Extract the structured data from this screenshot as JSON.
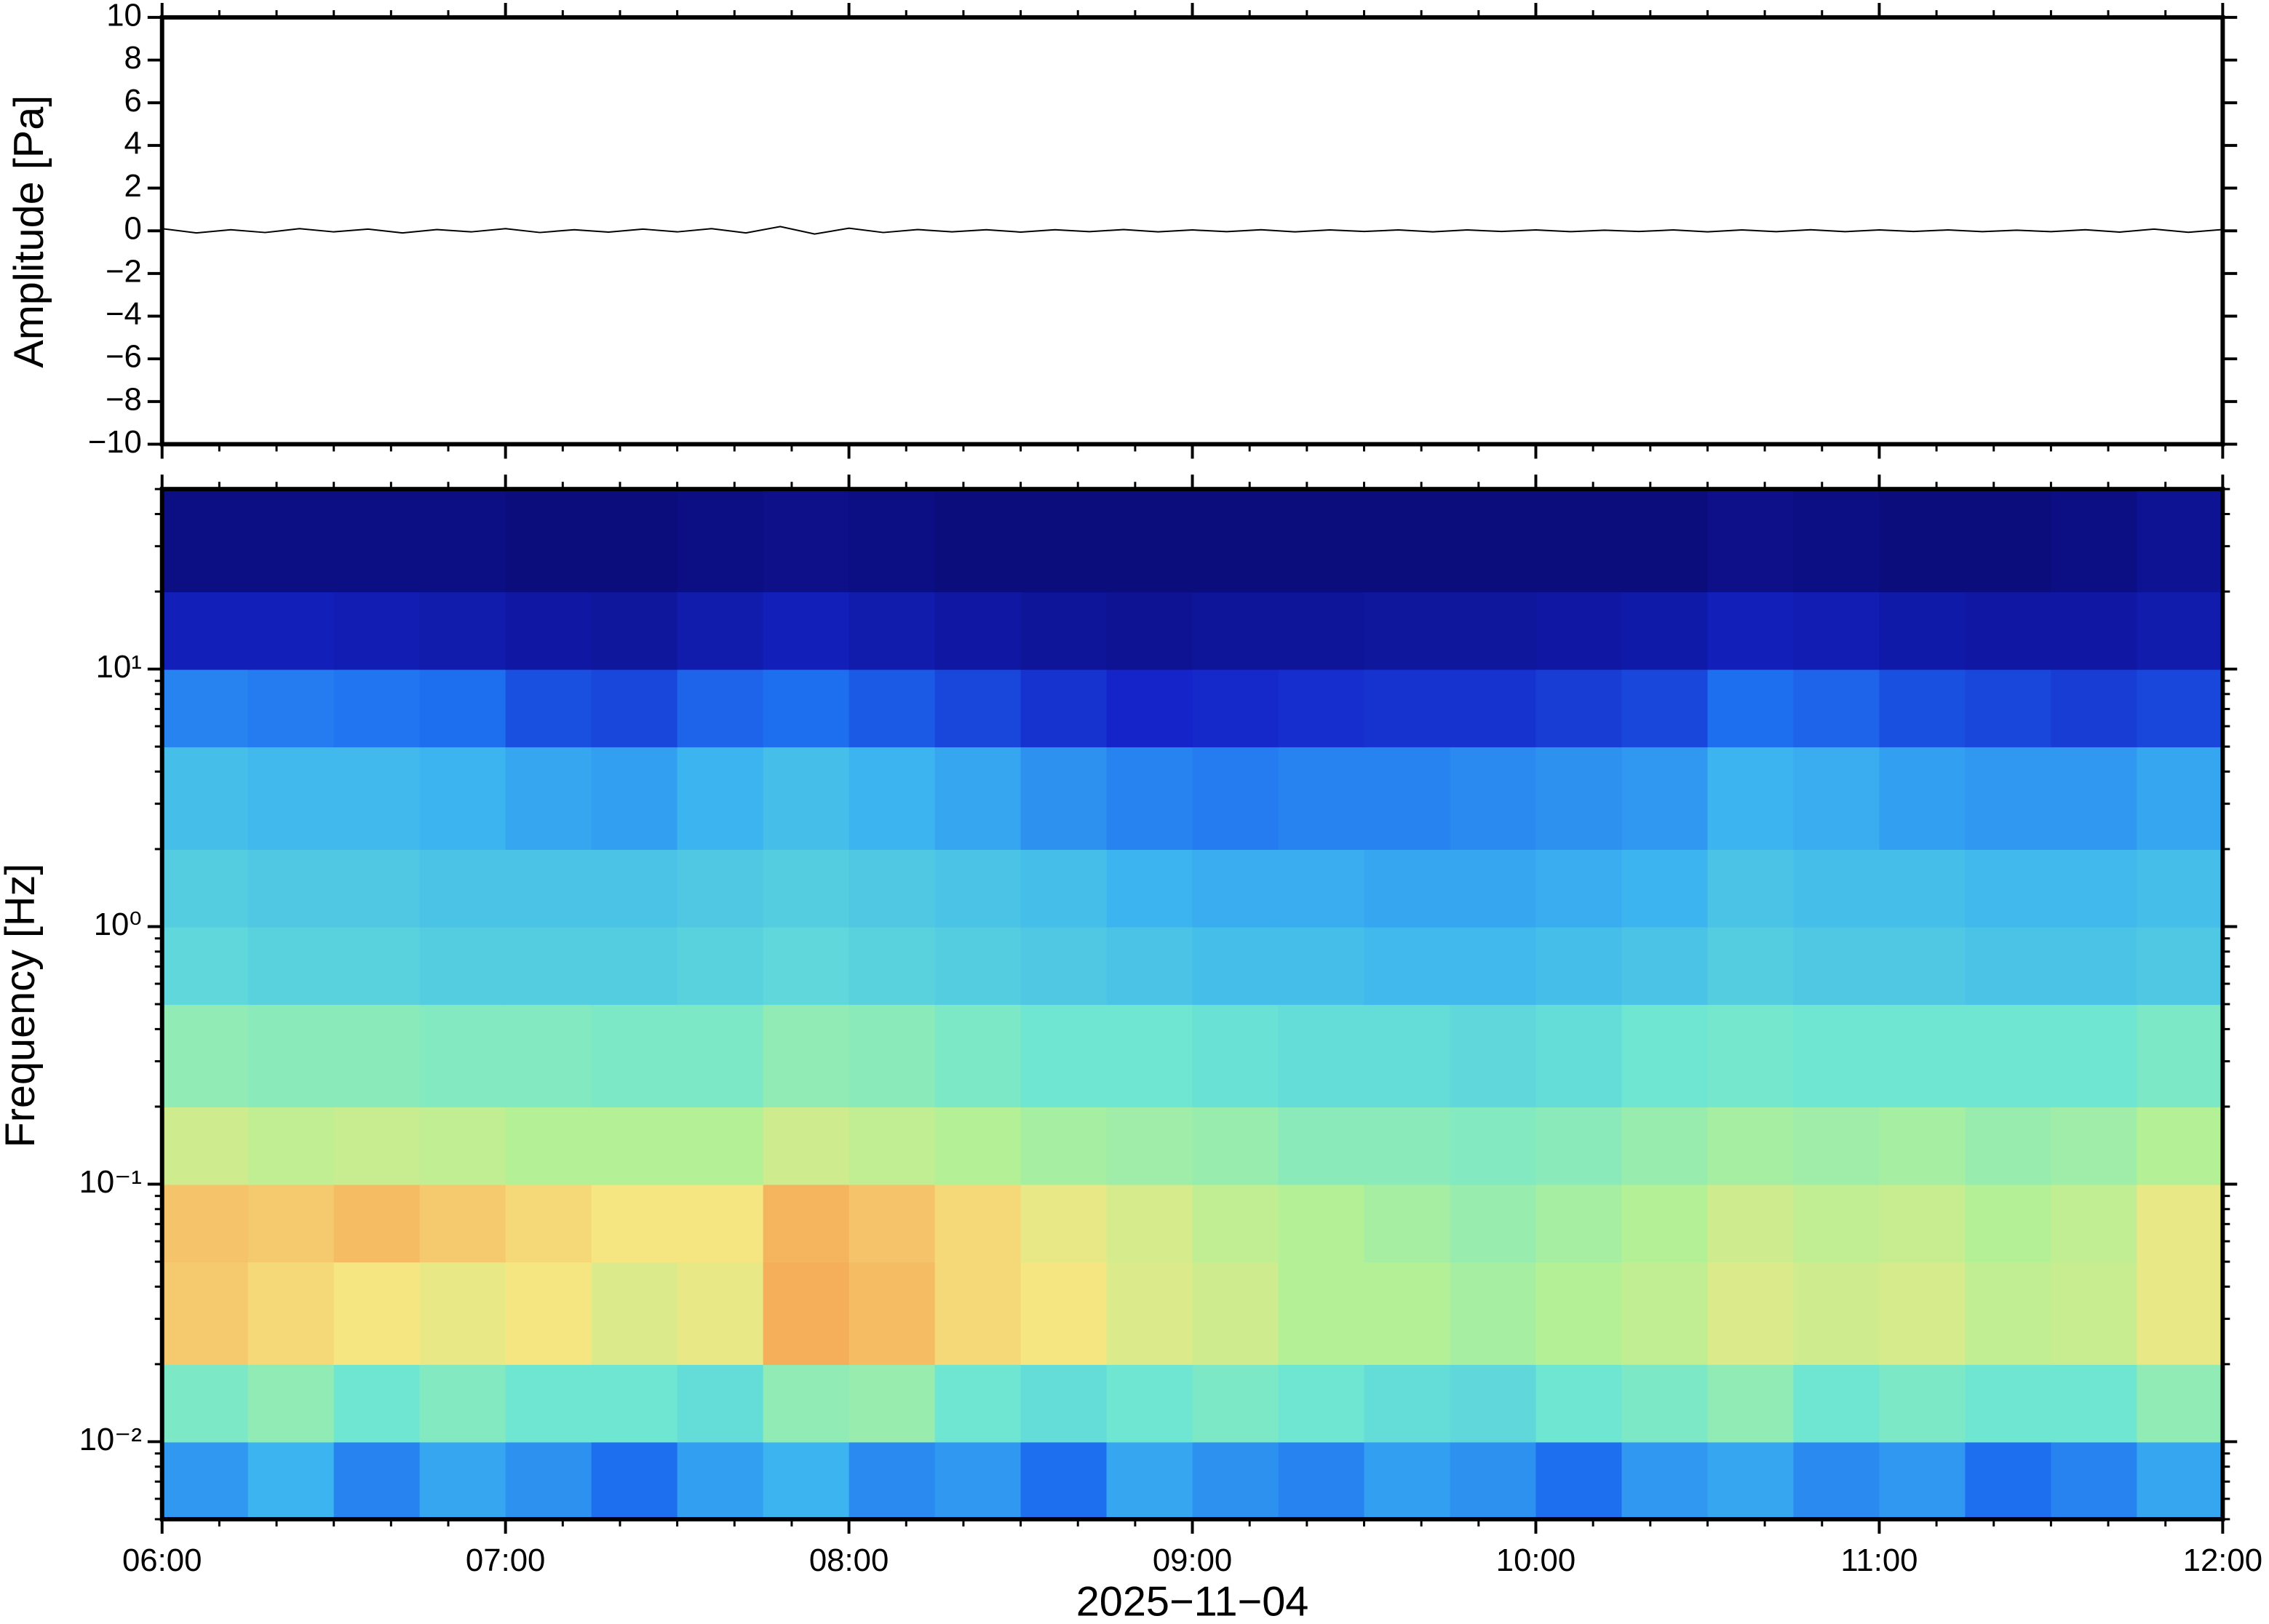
{
  "chart_data": [
    {
      "type": "line",
      "ylabel": "Amplitude [Pa]",
      "color": "#000000",
      "xlim": [
        6,
        12
      ],
      "ylim": [
        -10,
        10
      ],
      "yticks": [
        {
          "value": -10,
          "label": "−10"
        },
        {
          "value": -8,
          "label": "−8"
        },
        {
          "value": -6,
          "label": "−6"
        },
        {
          "value": -4,
          "label": "−4"
        },
        {
          "value": -2,
          "label": "−2"
        },
        0,
        2,
        4,
        6,
        8,
        10
      ],
      "x": [
        6.0,
        6.1,
        6.2,
        6.3,
        6.4,
        6.5,
        6.6,
        6.7,
        6.8,
        6.9,
        7.0,
        7.1,
        7.2,
        7.3,
        7.4,
        7.5,
        7.6,
        7.7,
        7.8,
        7.9,
        8.0,
        8.1,
        8.2,
        8.3,
        8.4,
        8.5,
        8.6,
        8.7,
        8.8,
        8.9,
        9.0,
        9.1,
        9.2,
        9.3,
        9.4,
        9.5,
        9.6,
        9.7,
        9.8,
        9.9,
        10.0,
        10.1,
        10.2,
        10.3,
        10.4,
        10.5,
        10.6,
        10.7,
        10.8,
        10.9,
        11.0,
        11.1,
        11.2,
        11.3,
        11.4,
        11.5,
        11.6,
        11.7,
        11.8,
        11.9,
        12.0
      ],
      "values": [
        0.1,
        -0.1,
        0.05,
        -0.08,
        0.1,
        -0.05,
        0.08,
        -0.1,
        0.06,
        -0.05,
        0.1,
        -0.08,
        0.05,
        -0.06,
        0.08,
        -0.05,
        0.1,
        -0.1,
        0.2,
        -0.15,
        0.12,
        -0.08,
        0.06,
        -0.05,
        0.05,
        -0.06,
        0.05,
        -0.04,
        0.06,
        -0.05,
        0.04,
        -0.04,
        0.05,
        -0.05,
        0.04,
        -0.03,
        0.04,
        -0.05,
        0.04,
        -0.03,
        0.04,
        -0.04,
        0.03,
        -0.03,
        0.04,
        -0.05,
        0.04,
        -0.04,
        0.05,
        -0.04,
        0.04,
        -0.03,
        0.04,
        -0.04,
        0.03,
        -0.04,
        0.05,
        -0.06,
        0.08,
        -0.07,
        0.06
      ]
    },
    {
      "type": "heatmap",
      "ylabel": "Frequency [Hz]",
      "xlabel": "2025−11−04",
      "ylog": true,
      "xlim": [
        6,
        12
      ],
      "ylim": [
        0.005,
        50
      ],
      "xticks": [
        {
          "value": 6,
          "label": "06:00"
        },
        {
          "value": 7,
          "label": "07:00"
        },
        {
          "value": 8,
          "label": "08:00"
        },
        {
          "value": 9,
          "label": "09:00"
        },
        {
          "value": 10,
          "label": "10:00"
        },
        {
          "value": 11,
          "label": "11:00"
        },
        {
          "value": 12,
          "label": "12:00"
        }
      ],
      "yticks": [
        {
          "value": 0.01,
          "label": "10⁻²"
        },
        {
          "value": 0.1,
          "label": "10⁻¹"
        },
        {
          "value": 1,
          "label": "10⁰"
        },
        {
          "value": 10,
          "label": "10¹"
        }
      ],
      "colormap": {
        "stops": [
          0,
          0.15,
          0.3,
          0.4,
          0.5,
          0.6,
          0.7,
          0.8,
          1
        ],
        "colors": [
          "#0b0b78",
          "#1424c8",
          "#1e6ef0",
          "#3cb4f0",
          "#6ee6d2",
          "#b4f096",
          "#f5e682",
          "#f5a050",
          "#e03020"
        ]
      },
      "x_edges": [
        6,
        6.25,
        6.5,
        6.75,
        7,
        7.25,
        7.5,
        7.75,
        8,
        8.25,
        8.5,
        8.75,
        9,
        9.25,
        9.5,
        9.75,
        10,
        10.25,
        10.5,
        10.75,
        11,
        11.25,
        11.5,
        11.75,
        12
      ],
      "y_edges": [
        0.005,
        0.01,
        0.02,
        0.05,
        0.1,
        0.2,
        0.5,
        1,
        2,
        5,
        10,
        20,
        50
      ],
      "values": [
        [
          0.36,
          0.4,
          0.33,
          0.38,
          0.35,
          0.3,
          0.37,
          0.4,
          0.34,
          0.36,
          0.3,
          0.38,
          0.35,
          0.33,
          0.37,
          0.35,
          0.3,
          0.36,
          0.38,
          0.34,
          0.36,
          0.3,
          0.33,
          0.38
        ],
        [
          0.52,
          0.55,
          0.5,
          0.53,
          0.5,
          0.5,
          0.48,
          0.55,
          0.56,
          0.5,
          0.48,
          0.5,
          0.52,
          0.5,
          0.48,
          0.47,
          0.5,
          0.52,
          0.55,
          0.5,
          0.52,
          0.5,
          0.5,
          0.55
        ],
        [
          0.74,
          0.72,
          0.7,
          0.68,
          0.7,
          0.66,
          0.68,
          0.78,
          0.76,
          0.72,
          0.7,
          0.66,
          0.64,
          0.6,
          0.6,
          0.58,
          0.6,
          0.62,
          0.66,
          0.64,
          0.65,
          0.62,
          0.63,
          0.68
        ],
        [
          0.75,
          0.74,
          0.76,
          0.74,
          0.72,
          0.7,
          0.7,
          0.77,
          0.75,
          0.72,
          0.68,
          0.65,
          0.62,
          0.6,
          0.58,
          0.56,
          0.58,
          0.6,
          0.64,
          0.62,
          0.63,
          0.6,
          0.62,
          0.68
        ],
        [
          0.64,
          0.62,
          0.63,
          0.62,
          0.6,
          0.6,
          0.6,
          0.64,
          0.62,
          0.6,
          0.58,
          0.57,
          0.56,
          0.54,
          0.54,
          0.53,
          0.54,
          0.56,
          0.58,
          0.57,
          0.58,
          0.56,
          0.57,
          0.6
        ],
        [
          0.55,
          0.54,
          0.54,
          0.53,
          0.53,
          0.52,
          0.52,
          0.55,
          0.54,
          0.52,
          0.5,
          0.5,
          0.49,
          0.48,
          0.48,
          0.47,
          0.48,
          0.5,
          0.51,
          0.5,
          0.5,
          0.5,
          0.5,
          0.52
        ],
        [
          0.47,
          0.46,
          0.46,
          0.45,
          0.45,
          0.45,
          0.46,
          0.47,
          0.46,
          0.45,
          0.44,
          0.43,
          0.42,
          0.42,
          0.41,
          0.41,
          0.42,
          0.43,
          0.45,
          0.44,
          0.44,
          0.43,
          0.43,
          0.44
        ],
        [
          0.45,
          0.44,
          0.44,
          0.43,
          0.43,
          0.43,
          0.44,
          0.45,
          0.44,
          0.43,
          0.42,
          0.4,
          0.39,
          0.39,
          0.38,
          0.38,
          0.39,
          0.4,
          0.43,
          0.42,
          0.42,
          0.41,
          0.41,
          0.42
        ],
        [
          0.42,
          0.41,
          0.41,
          0.4,
          0.38,
          0.37,
          0.4,
          0.42,
          0.4,
          0.38,
          0.35,
          0.33,
          0.32,
          0.33,
          0.33,
          0.34,
          0.35,
          0.36,
          0.4,
          0.39,
          0.37,
          0.36,
          0.36,
          0.38
        ],
        [
          0.33,
          0.32,
          0.31,
          0.3,
          0.24,
          0.22,
          0.28,
          0.3,
          0.26,
          0.22,
          0.18,
          0.15,
          0.16,
          0.17,
          0.18,
          0.18,
          0.2,
          0.22,
          0.3,
          0.28,
          0.24,
          0.22,
          0.2,
          0.22
        ],
        [
          0.12,
          0.12,
          0.11,
          0.1,
          0.08,
          0.07,
          0.1,
          0.12,
          0.1,
          0.08,
          0.06,
          0.05,
          0.06,
          0.06,
          0.07,
          0.07,
          0.08,
          0.09,
          0.12,
          0.11,
          0.09,
          0.08,
          0.08,
          0.1
        ],
        [
          0.02,
          0.02,
          0.02,
          0.02,
          0.01,
          0.01,
          0.02,
          0.03,
          0.02,
          0.01,
          0.01,
          0.01,
          0.01,
          0.01,
          0.01,
          0.01,
          0.01,
          0.01,
          0.03,
          0.02,
          0.01,
          0.01,
          0.02,
          0.05
        ]
      ]
    }
  ]
}
